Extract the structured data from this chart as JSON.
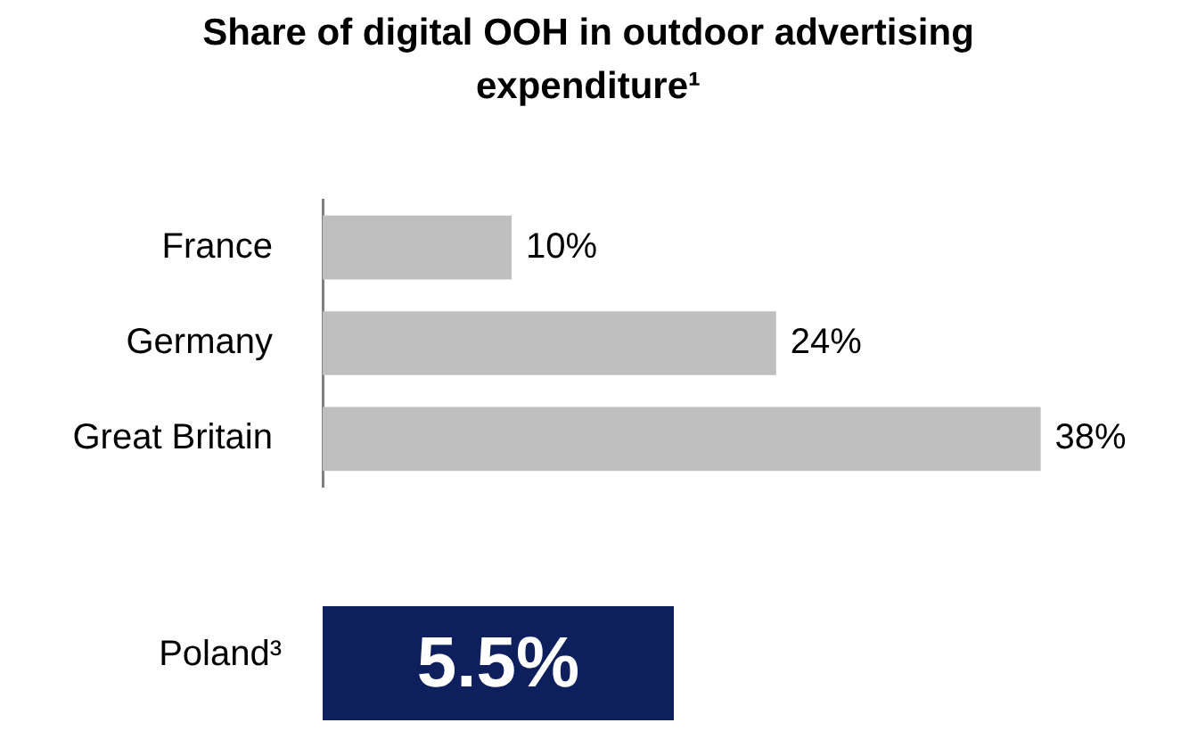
{
  "chart_data": [
    {
      "type": "bar",
      "orientation": "horizontal",
      "title": "Share of digital OOH in outdoor advertising expenditure¹",
      "categories": [
        "France",
        "Germany",
        "Great Britain"
      ],
      "values": [
        10,
        24,
        38
      ],
      "value_labels": [
        "10%",
        "24%",
        "38%"
      ],
      "color": "#bfbfbf",
      "legend": false,
      "tick_labels": "y"
    },
    {
      "type": "other",
      "categories": [
        "Poland³"
      ],
      "value_labels": [
        "5.5%"
      ],
      "colors": [
        "#0d1f5c"
      ]
    }
  ]
}
